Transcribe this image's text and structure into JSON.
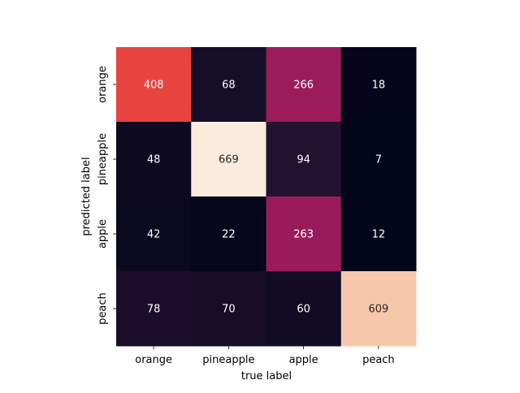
{
  "chart_data": {
    "type": "heatmap",
    "title": "",
    "xlabel": "true label",
    "ylabel": "predicted label",
    "x_categories": [
      "orange",
      "pineapple",
      "apple",
      "peach"
    ],
    "y_categories": [
      "orange",
      "pineapple",
      "apple",
      "peach"
    ],
    "values": [
      [
        408,
        68,
        266,
        18
      ],
      [
        48,
        669,
        94,
        7
      ],
      [
        42,
        22,
        263,
        12
      ],
      [
        78,
        70,
        60,
        609
      ]
    ],
    "colormap": "rocket",
    "vmin": 7,
    "vmax": 669,
    "colorbar": false,
    "grid": false,
    "annotations": true
  }
}
